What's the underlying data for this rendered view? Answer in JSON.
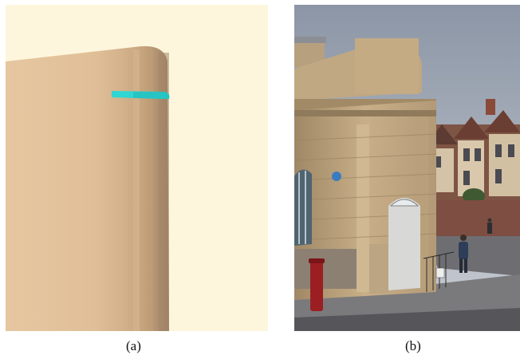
{
  "figure": {
    "captions": {
      "a": "(a)",
      "b": "(b)"
    }
  },
  "panel_a": {
    "kind": "3d-render",
    "colors": {
      "background": "#fdf6dd",
      "wall_light": "#e8c8a0",
      "wall_mid": "#d2b08a",
      "wall_shadow": "#a88a6a",
      "marker": "#2fd6d3"
    },
    "marker_icon": "cyan-ring-band"
  },
  "panel_b": {
    "kind": "photograph",
    "colors": {
      "sky": "#9fa8b6",
      "stone": "#c8b08a",
      "stone_shadow": "#9c8665",
      "roof_brick": "#8a4a3a",
      "pavement": "#7a7a7c",
      "door": "#d8d8d6"
    },
    "plaque_icon": "blue-circle-plaque",
    "pillar_box_icon": "red-post-box"
  }
}
